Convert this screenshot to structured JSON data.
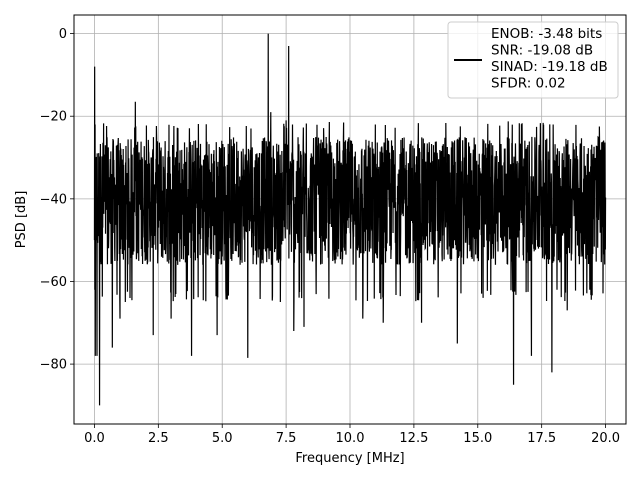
{
  "chart_data": {
    "type": "line",
    "xlabel": "Frequency [MHz]",
    "ylabel": "PSD [dB]",
    "xlim": [
      -0.8,
      20.8
    ],
    "ylim": [
      -94.5,
      4.5
    ],
    "x_ticks": [
      0.0,
      2.5,
      5.0,
      7.5,
      10.0,
      12.5,
      15.0,
      17.5,
      20.0
    ],
    "x_tick_labels": [
      "0.0",
      "2.5",
      "5.0",
      "7.5",
      "10.0",
      "12.5",
      "15.0",
      "17.5",
      "20.0"
    ],
    "y_ticks": [
      0,
      -20,
      -40,
      -60,
      -80
    ],
    "y_tick_labels": [
      "0",
      "−20",
      "−40",
      "−60",
      "−80"
    ],
    "grid": true,
    "legend_position": "top-right",
    "series": [
      {
        "name": "ENOB: -3.48 bits\nSNR: -19.08 dB\nSINAD: -19.18 dB\nSFDR: 0.02",
        "color": "#000000",
        "x_range": [
          0.0,
          20.0
        ],
        "noise_envelope": {
          "upper": -25,
          "lower": -56,
          "typical_peak": -23,
          "typical_trough": -62
        },
        "peaks": [
          {
            "x": 0.0,
            "y": -8
          },
          {
            "x": 1.6,
            "y": -16.5
          },
          {
            "x": 6.8,
            "y": 0
          },
          {
            "x": 7.6,
            "y": -3
          },
          {
            "x": 6.9,
            "y": -19
          },
          {
            "x": 7.5,
            "y": -21
          }
        ],
        "troughs": [
          {
            "x": 0.1,
            "y": -78
          },
          {
            "x": 0.2,
            "y": -90
          },
          {
            "x": 0.7,
            "y": -76
          },
          {
            "x": 1.0,
            "y": -69
          },
          {
            "x": 2.3,
            "y": -73
          },
          {
            "x": 3.0,
            "y": -69
          },
          {
            "x": 3.8,
            "y": -78
          },
          {
            "x": 4.8,
            "y": -73
          },
          {
            "x": 6.0,
            "y": -78.5
          },
          {
            "x": 7.8,
            "y": -72
          },
          {
            "x": 8.2,
            "y": -71
          },
          {
            "x": 10.5,
            "y": -69
          },
          {
            "x": 11.3,
            "y": -70
          },
          {
            "x": 12.8,
            "y": -70
          },
          {
            "x": 14.2,
            "y": -75
          },
          {
            "x": 16.4,
            "y": -85
          },
          {
            "x": 17.1,
            "y": -78
          },
          {
            "x": 17.9,
            "y": -82
          },
          {
            "x": 18.5,
            "y": -67
          }
        ]
      }
    ]
  }
}
